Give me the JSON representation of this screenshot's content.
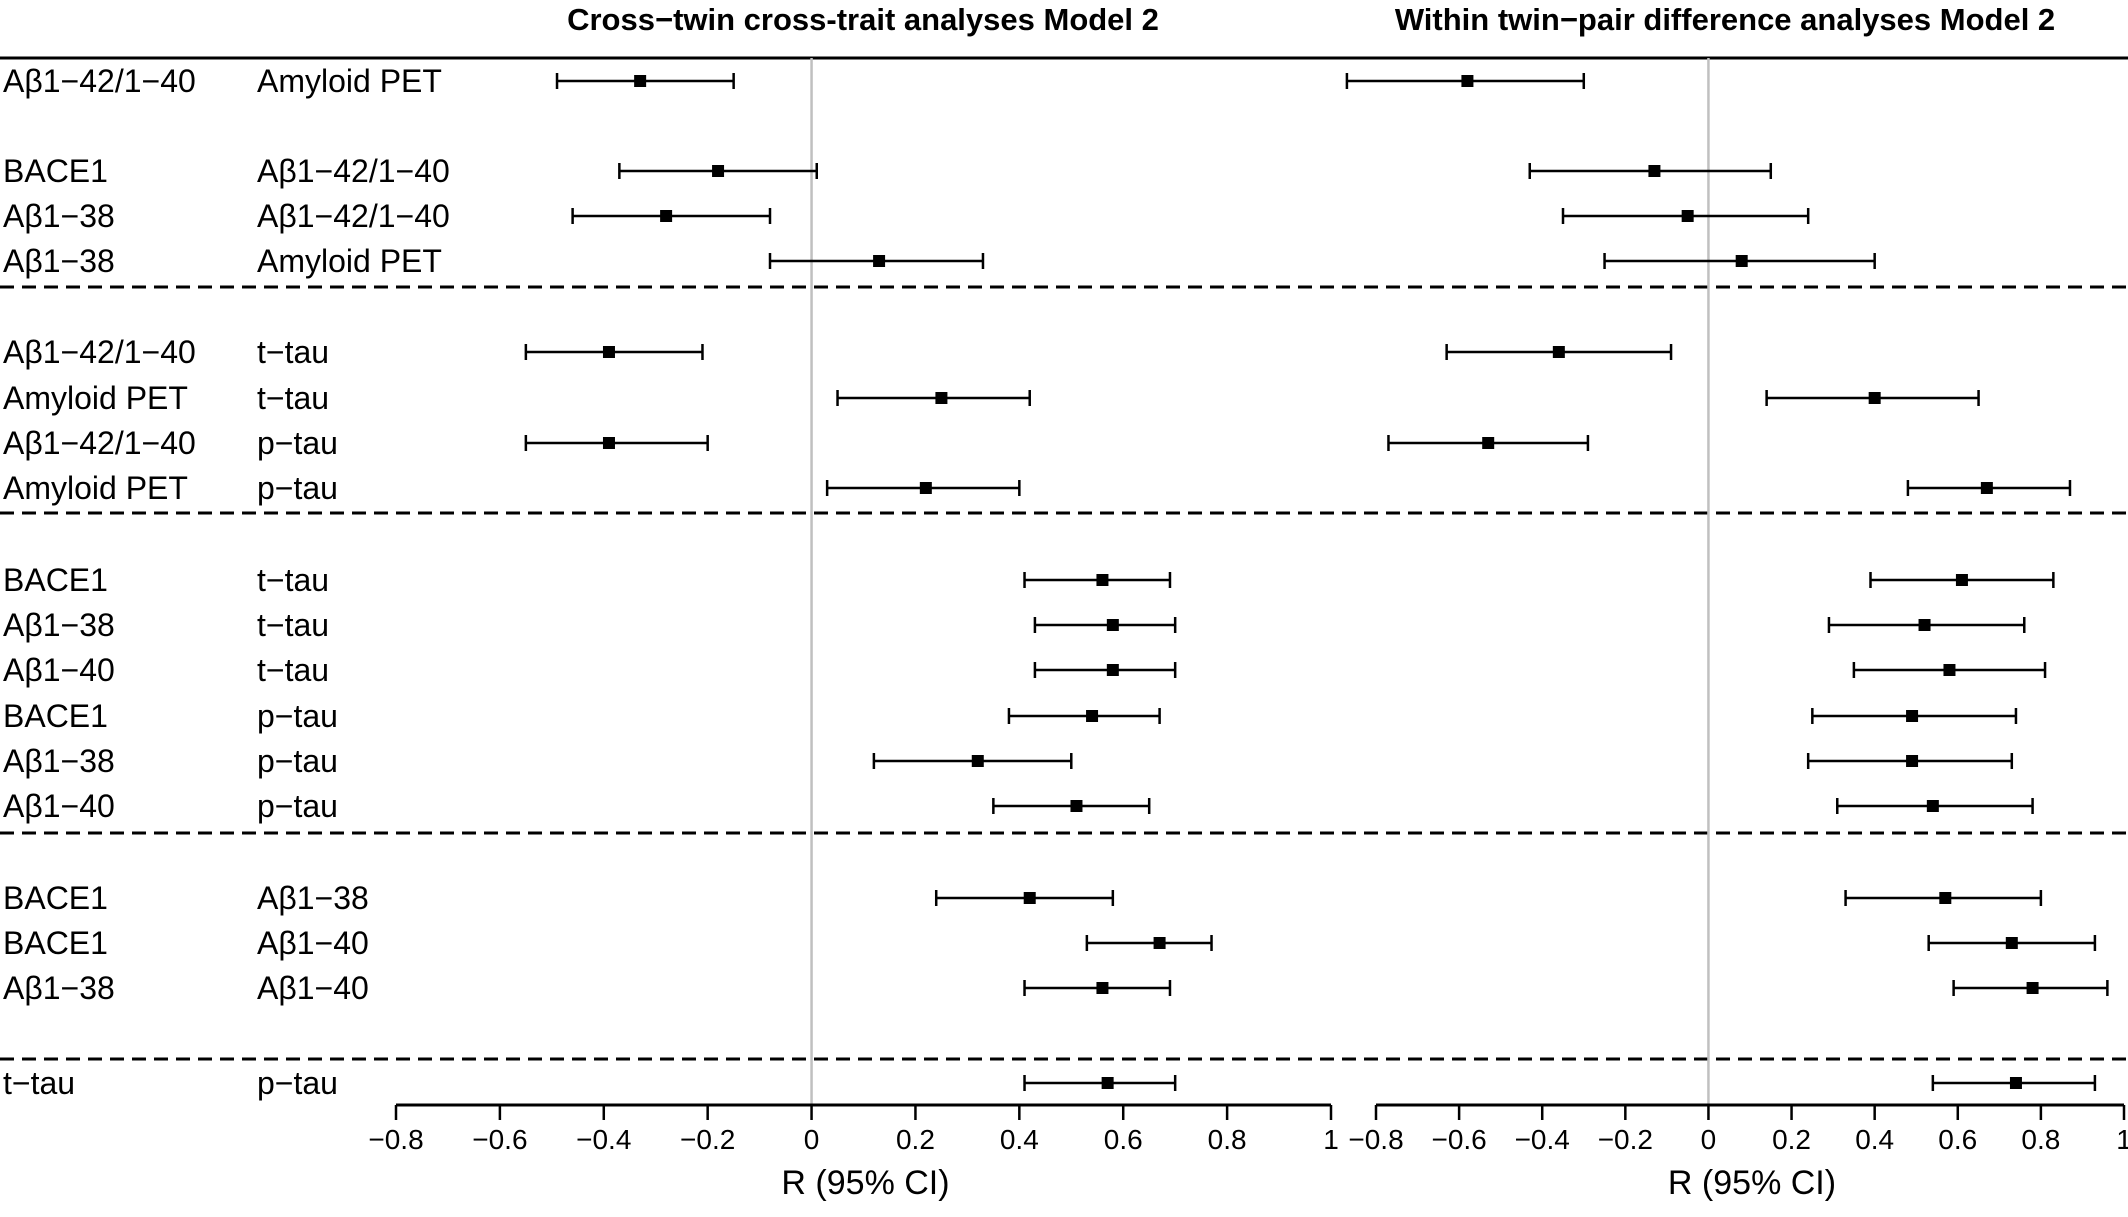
{
  "chart_data": {
    "type": "forest",
    "colors": {
      "marker": "#000000",
      "zero_line": "#c0c0c0",
      "separator": "#000000"
    },
    "rows": [
      {
        "trait1": "Aβ1−42/1−40",
        "trait2": "Amyloid PET",
        "group": 1
      },
      {
        "trait1": "BACE1",
        "trait2": "Aβ1−42/1−40",
        "group": 1
      },
      {
        "trait1": "Aβ1−38",
        "trait2": "Aβ1−42/1−40",
        "group": 1
      },
      {
        "trait1": "Aβ1−38",
        "trait2": "Amyloid PET",
        "group": 1
      },
      {
        "trait1": "Aβ1−42/1−40",
        "trait2": "t−tau",
        "group": 2
      },
      {
        "trait1": "Amyloid PET",
        "trait2": "t−tau",
        "group": 2
      },
      {
        "trait1": "Aβ1−42/1−40",
        "trait2": "p−tau",
        "group": 2
      },
      {
        "trait1": "Amyloid PET",
        "trait2": "p−tau",
        "group": 2
      },
      {
        "trait1": "BACE1",
        "trait2": "t−tau",
        "group": 3
      },
      {
        "trait1": "Aβ1−38",
        "trait2": "t−tau",
        "group": 3
      },
      {
        "trait1": "Aβ1−40",
        "trait2": "t−tau",
        "group": 3
      },
      {
        "trait1": "BACE1",
        "trait2": "p−tau",
        "group": 3
      },
      {
        "trait1": "Aβ1−38",
        "trait2": "p−tau",
        "group": 3
      },
      {
        "trait1": "Aβ1−40",
        "trait2": "p−tau",
        "group": 3
      },
      {
        "trait1": "BACE1",
        "trait2": "Aβ1−38",
        "group": 4
      },
      {
        "trait1": "BACE1",
        "trait2": "Aβ1−40",
        "group": 4
      },
      {
        "trait1": "Aβ1−38",
        "trait2": "Aβ1−40",
        "group": 4
      },
      {
        "trait1": "t−tau",
        "trait2": "p−tau",
        "group": 5
      }
    ],
    "panels": [
      {
        "title": "Cross−twin cross-trait analyses Model 2",
        "xlabel": "R (95% CI)",
        "xlim": [
          -0.8,
          1
        ],
        "ticks": [
          "−0.8",
          "−0.6",
          "−0.4",
          "−0.2",
          "0",
          "0.2",
          "0.4",
          "0.6",
          "0.8",
          "1"
        ],
        "estimates": [
          {
            "r": -0.33,
            "lo": -0.49,
            "hi": -0.15
          },
          {
            "r": -0.18,
            "lo": -0.37,
            "hi": 0.01
          },
          {
            "r": -0.28,
            "lo": -0.46,
            "hi": -0.08
          },
          {
            "r": 0.13,
            "lo": -0.08,
            "hi": 0.33
          },
          {
            "r": -0.39,
            "lo": -0.55,
            "hi": -0.21
          },
          {
            "r": 0.25,
            "lo": 0.05,
            "hi": 0.42
          },
          {
            "r": -0.39,
            "lo": -0.55,
            "hi": -0.2
          },
          {
            "r": 0.22,
            "lo": 0.03,
            "hi": 0.4
          },
          {
            "r": 0.56,
            "lo": 0.41,
            "hi": 0.69
          },
          {
            "r": 0.58,
            "lo": 0.43,
            "hi": 0.7
          },
          {
            "r": 0.58,
            "lo": 0.43,
            "hi": 0.7
          },
          {
            "r": 0.54,
            "lo": 0.38,
            "hi": 0.67
          },
          {
            "r": 0.32,
            "lo": 0.12,
            "hi": 0.5
          },
          {
            "r": 0.51,
            "lo": 0.35,
            "hi": 0.65
          },
          {
            "r": 0.42,
            "lo": 0.24,
            "hi": 0.58
          },
          {
            "r": 0.67,
            "lo": 0.53,
            "hi": 0.77
          },
          {
            "r": 0.56,
            "lo": 0.41,
            "hi": 0.69
          },
          {
            "r": 0.57,
            "lo": 0.41,
            "hi": 0.7
          }
        ]
      },
      {
        "title": "Within twin−pair difference analyses Model 2",
        "xlabel": "R (95% CI)",
        "xlim": [
          -0.8,
          1
        ],
        "ticks": [
          "−0.8",
          "−0.6",
          "−0.4",
          "−0.2",
          "0",
          "0.2",
          "0.4",
          "0.6",
          "0.8",
          "1"
        ],
        "estimates": [
          {
            "r": -0.58,
            "lo": -0.87,
            "hi": -0.3
          },
          {
            "r": -0.13,
            "lo": -0.43,
            "hi": 0.15
          },
          {
            "r": -0.05,
            "lo": -0.35,
            "hi": 0.24
          },
          {
            "r": 0.08,
            "lo": -0.25,
            "hi": 0.4
          },
          {
            "r": -0.36,
            "lo": -0.63,
            "hi": -0.09
          },
          {
            "r": 0.4,
            "lo": 0.14,
            "hi": 0.65
          },
          {
            "r": -0.53,
            "lo": -0.77,
            "hi": -0.29
          },
          {
            "r": 0.67,
            "lo": 0.48,
            "hi": 0.87
          },
          {
            "r": 0.61,
            "lo": 0.39,
            "hi": 0.83
          },
          {
            "r": 0.52,
            "lo": 0.29,
            "hi": 0.76
          },
          {
            "r": 0.58,
            "lo": 0.35,
            "hi": 0.81
          },
          {
            "r": 0.49,
            "lo": 0.25,
            "hi": 0.74
          },
          {
            "r": 0.49,
            "lo": 0.24,
            "hi": 0.73
          },
          {
            "r": 0.54,
            "lo": 0.31,
            "hi": 0.78
          },
          {
            "r": 0.57,
            "lo": 0.33,
            "hi": 0.8
          },
          {
            "r": 0.73,
            "lo": 0.53,
            "hi": 0.93
          },
          {
            "r": 0.78,
            "lo": 0.59,
            "hi": 0.96
          },
          {
            "r": 0.74,
            "lo": 0.54,
            "hi": 0.93
          }
        ]
      }
    ]
  }
}
